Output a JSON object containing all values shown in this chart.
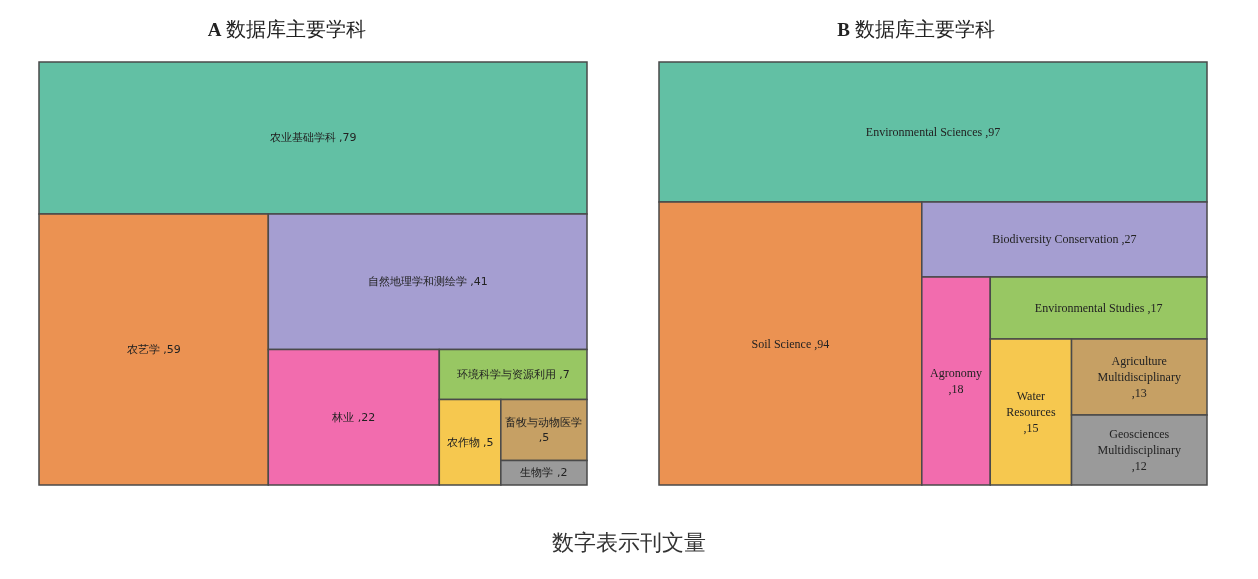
{
  "chart_data": [
    {
      "type": "other",
      "title": "A 数据库主要学科",
      "categories": [
        "农业基础学科",
        "农艺学",
        "自然地理学和测绘学",
        "林业",
        "环境科学与资源利用",
        "农作物",
        "畜牧与动物医学",
        "生物学"
      ],
      "values": [
        79,
        59,
        41,
        22,
        7,
        5,
        5,
        2
      ],
      "value_labels": [
        ",79",
        ",59",
        ",41",
        ",22",
        ",7",
        ",5",
        ",5",
        ",2"
      ],
      "colors": [
        "#62c0a4",
        "#eb9252",
        "#a59ed1",
        "#f26cae",
        "#98c763",
        "#f6c84f",
        "#c6a064",
        "#9a9a9a"
      ],
      "data_labels": true,
      "annotations": [
        "数字表示刊文量"
      ]
    },
    {
      "type": "other",
      "title": "B 数据库主要学科",
      "categories": [
        "Environmental Sciences",
        "Soil Science",
        "Biodiversity Conservation",
        "Agronomy",
        "Environmental Studies",
        "Water Resources",
        "Agriculture Multidisciplinary",
        "Geosciences Multidisciplinary"
      ],
      "values": [
        97,
        94,
        27,
        18,
        17,
        15,
        13,
        12
      ],
      "value_labels": [
        ",97",
        ",94",
        ",27",
        ",18",
        ",17",
        ",15",
        ",13",
        ",12"
      ],
      "colors": [
        "#62c0a4",
        "#eb9252",
        "#a59ed1",
        "#f26cae",
        "#98c763",
        "#f6c84f",
        "#c6a064",
        "#9a9a9a"
      ],
      "data_labels": true
    }
  ]
}
